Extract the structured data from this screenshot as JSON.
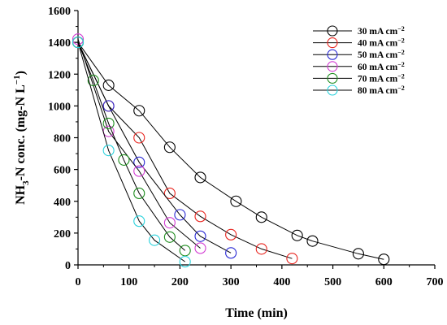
{
  "chart_data": {
    "type": "line",
    "xlabel": "Time (min)",
    "ylabel": "NH3-N conc. (mg-N L−1)",
    "ylabel_parts": {
      "pre": "NH",
      "sub": "3",
      "mid": "-N conc. (mg-N L",
      "sup": "−1",
      "post": ")"
    },
    "xlim": [
      0,
      700
    ],
    "ylim": [
      0,
      1600
    ],
    "xticks": [
      0,
      100,
      200,
      300,
      400,
      500,
      600,
      700
    ],
    "yticks": [
      0,
      200,
      400,
      600,
      800,
      1000,
      1200,
      1400,
      1600
    ],
    "grid": false,
    "legend_position": "top-right",
    "series": [
      {
        "name": "30 mA cm−2",
        "label_parts": {
          "base": "30 mA cm",
          "sup": "−2"
        },
        "color": "#000000",
        "x": [
          0,
          60,
          120,
          180,
          240,
          310,
          360,
          430,
          460,
          550,
          600
        ],
        "y": [
          1400,
          1130,
          970,
          740,
          550,
          400,
          300,
          185,
          150,
          70,
          35
        ]
      },
      {
        "name": "40 mA cm−2",
        "label_parts": {
          "base": "40 mA cm",
          "sup": "−2"
        },
        "color": "#e8241e",
        "x": [
          0,
          60,
          120,
          180,
          240,
          300,
          360,
          420
        ],
        "y": [
          1400,
          1000,
          800,
          450,
          305,
          190,
          100,
          40
        ]
      },
      {
        "name": "50 mA cm−2",
        "label_parts": {
          "base": "50 mA cm",
          "sup": "−2"
        },
        "color": "#2a2ad4",
        "x": [
          0,
          60,
          120,
          200,
          240,
          300
        ],
        "y": [
          1400,
          1000,
          645,
          315,
          180,
          75
        ]
      },
      {
        "name": "60 mA cm−2",
        "label_parts": {
          "base": "60 mA cm",
          "sup": "−2"
        },
        "color": "#d23cd2",
        "x": [
          0,
          60,
          120,
          180,
          240
        ],
        "y": [
          1420,
          840,
          590,
          265,
          105
        ]
      },
      {
        "name": "70 mA cm−2",
        "label_parts": {
          "base": "70 mA cm",
          "sup": "−2"
        },
        "color": "#1e8c1e",
        "x": [
          0,
          30,
          60,
          90,
          120,
          180,
          210
        ],
        "y": [
          1400,
          1160,
          890,
          660,
          450,
          175,
          90
        ]
      },
      {
        "name": "80 mA cm−2",
        "label_parts": {
          "base": "80 mA cm",
          "sup": "−2"
        },
        "color": "#2ad2dc",
        "x": [
          0,
          60,
          120,
          150,
          210
        ],
        "y": [
          1400,
          720,
          275,
          155,
          20
        ]
      }
    ]
  }
}
